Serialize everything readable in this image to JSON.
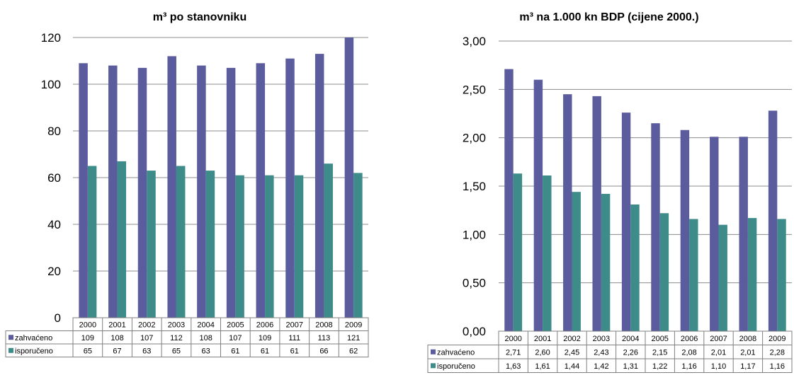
{
  "colors": {
    "zahvaceno": "#5A5C9E",
    "isporuceno": "#3E8C8A",
    "grid": "#8C8C8C",
    "border": "#7F7F7F"
  },
  "chart_data": [
    {
      "type": "bar",
      "title": "m³ po stanovniku",
      "categories": [
        "2000",
        "2001",
        "2002",
        "2003",
        "2004",
        "2005",
        "2006",
        "2007",
        "2008",
        "2009"
      ],
      "ylim": [
        0,
        120
      ],
      "yticks": [
        0,
        20,
        40,
        60,
        80,
        100,
        120
      ],
      "ytick_labels": [
        "0",
        "20",
        "40",
        "60",
        "80",
        "100",
        "120"
      ],
      "grid": true,
      "legend": "data-table",
      "series": [
        {
          "name": "zahvaćeno",
          "values": [
            109,
            108,
            107,
            112,
            108,
            107,
            109,
            111,
            113,
            121
          ],
          "labels": [
            "109",
            "108",
            "107",
            "112",
            "108",
            "107",
            "109",
            "111",
            "113",
            "121"
          ]
        },
        {
          "name": "isporučeno",
          "values": [
            65,
            67,
            63,
            65,
            63,
            61,
            61,
            61,
            66,
            62
          ],
          "labels": [
            "65",
            "67",
            "63",
            "65",
            "63",
            "61",
            "61",
            "61",
            "66",
            "62"
          ]
        }
      ]
    },
    {
      "type": "bar",
      "title": "m³ na 1.000 kn BDP (cijene 2000.)",
      "categories": [
        "2000",
        "2001",
        "2002",
        "2003",
        "2004",
        "2005",
        "2006",
        "2007",
        "2008",
        "2009"
      ],
      "ylim": [
        0,
        3
      ],
      "yticks": [
        0,
        0.5,
        1,
        1.5,
        2,
        2.5,
        3
      ],
      "ytick_labels": [
        "0,00",
        "0,50",
        "1,00",
        "1,50",
        "2,00",
        "2,50",
        "3,00"
      ],
      "grid": true,
      "legend": "data-table",
      "series": [
        {
          "name": "zahvaćeno",
          "values": [
            2.71,
            2.6,
            2.45,
            2.43,
            2.26,
            2.15,
            2.08,
            2.01,
            2.01,
            2.28
          ],
          "labels": [
            "2,71",
            "2,60",
            "2,45",
            "2,43",
            "2,26",
            "2,15",
            "2,08",
            "2,01",
            "2,01",
            "2,28"
          ]
        },
        {
          "name": "isporučeno",
          "values": [
            1.63,
            1.61,
            1.44,
            1.42,
            1.31,
            1.22,
            1.16,
            1.1,
            1.17,
            1.16
          ],
          "labels": [
            "1,63",
            "1,61",
            "1,44",
            "1,42",
            "1,31",
            "1,22",
            "1,16",
            "1,10",
            "1,17",
            "1,16"
          ]
        }
      ]
    }
  ]
}
